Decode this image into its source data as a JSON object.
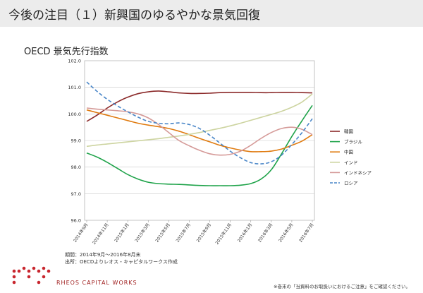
{
  "page": {
    "title": "今後の注目（１）新興国のゆるやかな景気回復",
    "source_period": "期間：2014年9月～2016年8月末",
    "source": "出所：OECDよりレオス・キャピタルワークス作成",
    "brand": "RHEOS CAPITAL WORKS",
    "footer_note": "※巻末の「当資料のお取扱いにおけるご注意」をご確認ください。"
  },
  "chart_data": {
    "type": "line",
    "title": "OECD 景気先行指数",
    "xlabel": "",
    "ylabel": "",
    "ylim": [
      96.0,
      102.0
    ],
    "yticks": [
      "96.0",
      "97.0",
      "98.0",
      "99.0",
      "100.0",
      "101.0",
      "102.0"
    ],
    "ytick_values": [
      96,
      97,
      98,
      99,
      100,
      101,
      102
    ],
    "categories": [
      "2014年9月",
      "2014年10月",
      "2014年11月",
      "2014年12月",
      "2015年1月",
      "2015年2月",
      "2015年3月",
      "2015年4月",
      "2015年5月",
      "2015年6月",
      "2015年7月",
      "2015年8月",
      "2015年9月",
      "2015年10月",
      "2015年11月",
      "2015年12月",
      "2016年1月",
      "2016年2月",
      "2016年3月",
      "2016年4月",
      "2016年5月",
      "2016年6月",
      "2016年7月"
    ],
    "xtick_labels": [
      "2014年9月",
      "2014年11月",
      "2015年1月",
      "2015年3月",
      "2015年5月",
      "2015年7月",
      "2015年9月",
      "2015年11月",
      "2016年1月",
      "2016年3月",
      "2016年5月",
      "2016年7月"
    ],
    "grid": "horizontal",
    "legend_position": "right",
    "series": [
      {
        "name": "韓国",
        "color": "#8b2a2a",
        "dash": false,
        "values": [
          99.72,
          99.95,
          100.22,
          100.45,
          100.63,
          100.76,
          100.83,
          100.86,
          100.83,
          100.79,
          100.77,
          100.77,
          100.78,
          100.8,
          100.81,
          100.81,
          100.81,
          100.8,
          100.8,
          100.81,
          100.81,
          100.8,
          100.79
        ]
      },
      {
        "name": "ブラジル",
        "color": "#1fa34a",
        "dash": false,
        "values": [
          98.53,
          98.38,
          98.18,
          97.95,
          97.72,
          97.55,
          97.43,
          97.38,
          97.36,
          97.35,
          97.33,
          97.31,
          97.3,
          97.3,
          97.3,
          97.32,
          97.38,
          97.55,
          97.9,
          98.5,
          99.15,
          99.75,
          100.32
        ]
      },
      {
        "name": "中国",
        "color": "#e07b10",
        "dash": false,
        "values": [
          100.15,
          100.05,
          99.95,
          99.85,
          99.75,
          99.65,
          99.58,
          99.52,
          99.45,
          99.35,
          99.22,
          99.08,
          98.95,
          98.82,
          98.72,
          98.64,
          98.58,
          98.58,
          98.6,
          98.68,
          98.82,
          98.98,
          99.22
        ]
      },
      {
        "name": "インド",
        "color": "#cdd4a0",
        "dash": false,
        "values": [
          98.78,
          98.83,
          98.87,
          98.91,
          98.95,
          98.99,
          99.03,
          99.07,
          99.12,
          99.17,
          99.23,
          99.3,
          99.38,
          99.46,
          99.55,
          99.65,
          99.76,
          99.87,
          99.98,
          100.1,
          100.25,
          100.45,
          100.75
        ]
      },
      {
        "name": "インドネシア",
        "color": "#d59a98",
        "dash": false,
        "values": [
          100.22,
          100.18,
          100.15,
          100.12,
          100.08,
          100.0,
          99.85,
          99.6,
          99.3,
          99.0,
          98.8,
          98.63,
          98.5,
          98.45,
          98.48,
          98.6,
          98.82,
          99.08,
          99.3,
          99.45,
          99.5,
          99.42,
          99.22
        ]
      },
      {
        "name": "ロシア",
        "color": "#4a86c8",
        "dash": true,
        "values": [
          101.2,
          100.85,
          100.55,
          100.3,
          100.08,
          99.88,
          99.72,
          99.65,
          99.63,
          99.66,
          99.6,
          99.45,
          99.2,
          98.9,
          98.6,
          98.35,
          98.17,
          98.12,
          98.2,
          98.45,
          98.85,
          99.3,
          99.82
        ]
      }
    ]
  }
}
